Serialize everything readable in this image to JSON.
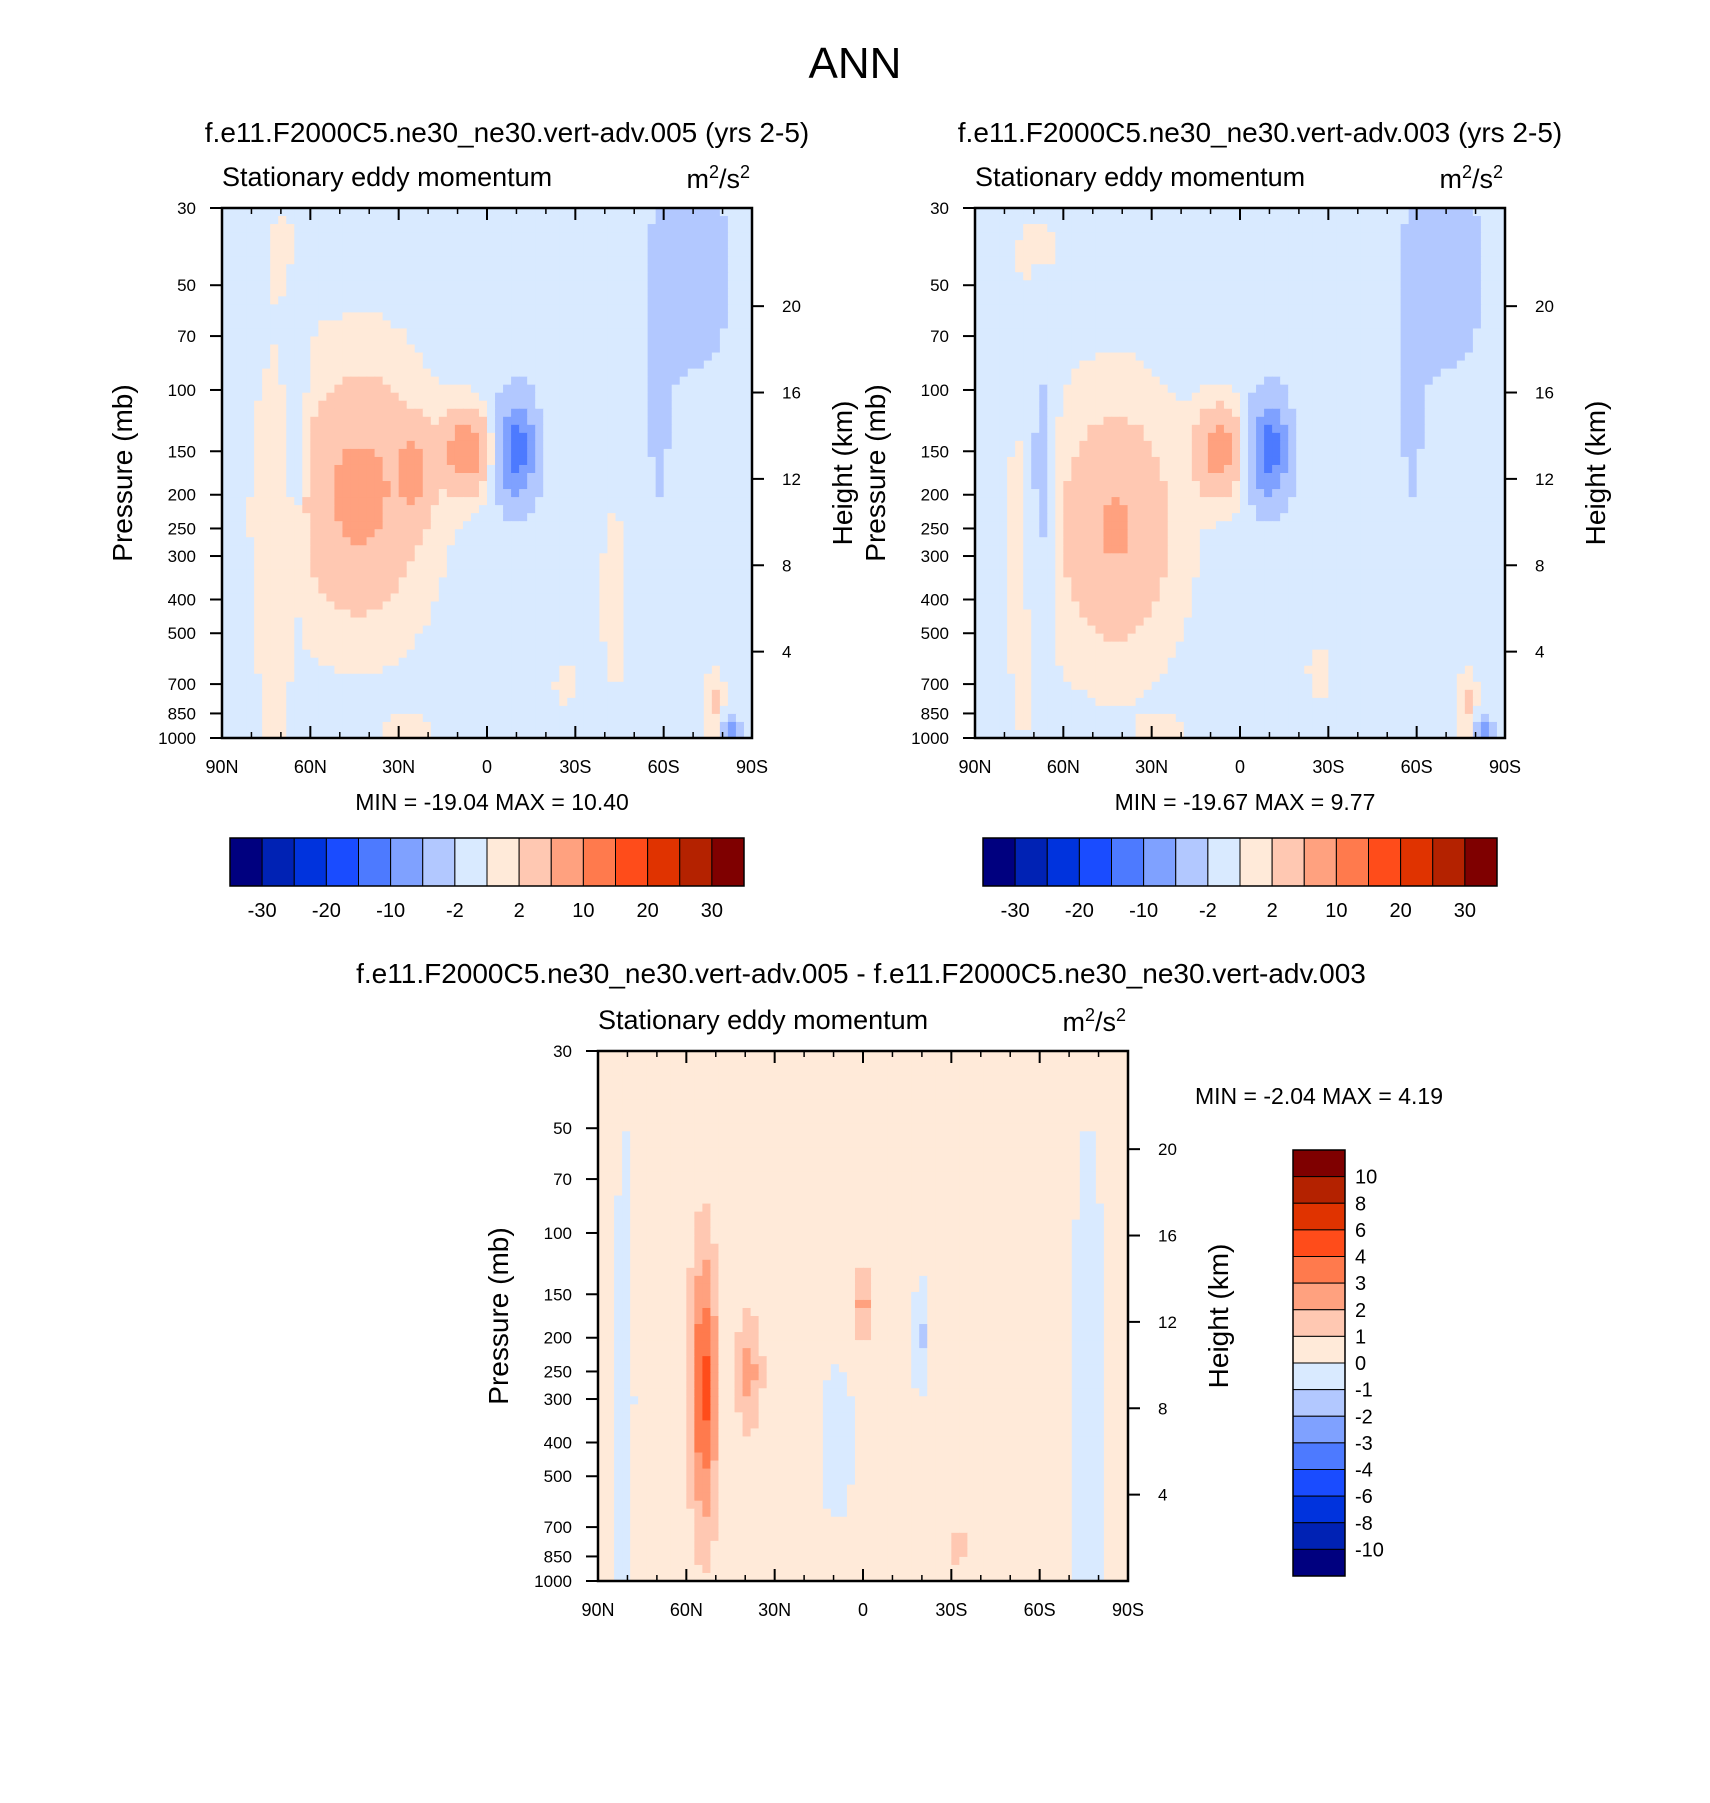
{
  "figure": {
    "title": "ANN"
  },
  "palettes": {
    "main": [
      "#00007f",
      "#0022b4",
      "#0033dd",
      "#1a4cff",
      "#4d7aff",
      "#7fa1ff",
      "#b2c8ff",
      "#d9eaff",
      "#ffead9",
      "#ffc8b2",
      "#ffa17f",
      "#ff7a4d",
      "#ff4c1a",
      "#e03300",
      "#b42200",
      "#7f0000"
    ],
    "diff": [
      "#7f0000",
      "#b42200",
      "#e03300",
      "#ff4c1a",
      "#ff7a4d",
      "#ffa17f",
      "#ffc8b2",
      "#ffead9",
      "#d9eaff",
      "#b2c8ff",
      "#7fa1ff",
      "#4d7aff",
      "#1a4cff",
      "#0033dd",
      "#0022b4",
      "#00007f"
    ]
  },
  "chart_data": [
    {
      "id": "panel-a",
      "type": "heatmap",
      "title": "f.e11.F2000C5.ne30_ne30.vert-adv.005 (yrs 2-5)",
      "subtitle": "Stationary eddy momentum",
      "units": "m2/s2",
      "units_base": "m",
      "units_exp": "2",
      "units_mid": "/s",
      "ylabel": "Pressure (mb)",
      "y2label": "Height (km)",
      "xticks": [
        "90N",
        "60N",
        "30N",
        "0",
        "30S",
        "60S",
        "90S"
      ],
      "yticks": [
        "30",
        "50",
        "70",
        "100",
        "150",
        "200",
        "250",
        "300",
        "400",
        "500",
        "700",
        "850",
        "1000"
      ],
      "y2ticks": [
        "20",
        "16",
        "12",
        "8",
        "4"
      ],
      "stats": "MIN = -19.04  MAX =  10.40",
      "colorbar_labels": [
        "-30",
        "-20",
        "-10",
        "-2",
        "2",
        "10",
        "20",
        "30"
      ],
      "features": [
        {
          "lat": 0.48,
          "p": 200,
          "w": 0.22,
          "h": 0.75,
          "v": 8
        },
        {
          "lat": 0.27,
          "p": 170,
          "w": 0.06,
          "h": 0.28,
          "v": 6
        },
        {
          "lat": 0.08,
          "p": 150,
          "w": 0.09,
          "h": 0.25,
          "v": 10
        },
        {
          "lat": -0.11,
          "p": 150,
          "w": 0.075,
          "h": 0.33,
          "v": -12
        },
        {
          "lat": 0.72,
          "p": 150,
          "w": 0.04,
          "h": 0.9,
          "v": -3
        },
        {
          "lat": -0.78,
          "p": 45,
          "w": 0.12,
          "h": 0.6,
          "v": -5
        },
        {
          "lat": -0.65,
          "p": 100,
          "w": 0.06,
          "h": 1.2,
          "v": -2
        },
        {
          "lat": -0.48,
          "p": 400,
          "w": 0.05,
          "h": 0.6,
          "v": 1.5
        },
        {
          "lat": 0.8,
          "p": 350,
          "w": 0.1,
          "h": 1.6,
          "v": 1
        },
        {
          "lat": 0.75,
          "p": 40,
          "w": 0.1,
          "h": 0.4,
          "v": 0.8
        },
        {
          "lat": -0.86,
          "p": 800,
          "w": 0.03,
          "h": 0.22,
          "v": 3
        },
        {
          "lat": 0.3,
          "p": 950,
          "w": 0.08,
          "h": 0.1,
          "v": 1.5
        },
        {
          "lat": -0.3,
          "p": 700,
          "w": 0.06,
          "h": 0.18,
          "v": 1
        },
        {
          "lat": -0.92,
          "p": 950,
          "w": 0.03,
          "h": 0.08,
          "v": -8
        }
      ],
      "bias": -0.6
    },
    {
      "id": "panel-b",
      "type": "heatmap",
      "title": "f.e11.F2000C5.ne30_ne30.vert-adv.003 (yrs 2-5)",
      "subtitle": "Stationary eddy momentum",
      "units": "m2/s2",
      "units_base": "m",
      "units_exp": "2",
      "units_mid": "/s",
      "ylabel": "Pressure (mb)",
      "y2label": "Height (km)",
      "xticks": [
        "90N",
        "60N",
        "30N",
        "0",
        "30S",
        "60S",
        "90S"
      ],
      "yticks": [
        "30",
        "50",
        "70",
        "100",
        "150",
        "200",
        "250",
        "300",
        "400",
        "500",
        "700",
        "850",
        "1000"
      ],
      "y2ticks": [
        "20",
        "16",
        "12",
        "8",
        "4"
      ],
      "stats": "MIN = -19.67  MAX =   9.77",
      "colorbar_labels": [
        "-30",
        "-20",
        "-10",
        "-2",
        "2",
        "10",
        "20",
        "30"
      ],
      "features": [
        {
          "lat": 0.47,
          "p": 250,
          "w": 0.2,
          "h": 0.75,
          "v": 7
        },
        {
          "lat": 0.08,
          "p": 150,
          "w": 0.09,
          "h": 0.28,
          "v": 9
        },
        {
          "lat": -0.11,
          "p": 150,
          "w": 0.075,
          "h": 0.33,
          "v": -12
        },
        {
          "lat": 0.75,
          "p": 200,
          "w": 0.05,
          "h": 1.0,
          "v": -3.5
        },
        {
          "lat": -0.78,
          "p": 45,
          "w": 0.12,
          "h": 0.6,
          "v": -5
        },
        {
          "lat": -0.65,
          "p": 100,
          "w": 0.06,
          "h": 1.2,
          "v": -2
        },
        {
          "lat": 0.8,
          "p": 350,
          "w": 0.1,
          "h": 1.6,
          "v": 1
        },
        {
          "lat": 0.75,
          "p": 40,
          "w": 0.12,
          "h": 0.4,
          "v": 0.8
        },
        {
          "lat": -0.86,
          "p": 800,
          "w": 0.03,
          "h": 0.22,
          "v": 3
        },
        {
          "lat": 0.3,
          "p": 950,
          "w": 0.08,
          "h": 0.1,
          "v": 1.5
        },
        {
          "lat": -0.3,
          "p": 650,
          "w": 0.06,
          "h": 0.22,
          "v": 1
        },
        {
          "lat": -0.92,
          "p": 950,
          "w": 0.03,
          "h": 0.08,
          "v": -8
        }
      ],
      "bias": -0.6
    },
    {
      "id": "panel-c",
      "type": "heatmap",
      "title": "f.e11.F2000C5.ne30_ne30.vert-adv.005 - f.e11.F2000C5.ne30_ne30.vert-adv.003",
      "subtitle": "Stationary eddy momentum",
      "units": "m2/s2",
      "units_base": "m",
      "units_exp": "2",
      "units_mid": "/s",
      "ylabel": "Pressure (mb)",
      "y2label": "Height (km)",
      "xticks": [
        "90N",
        "60N",
        "30N",
        "0",
        "30S",
        "60S",
        "90S"
      ],
      "yticks": [
        "30",
        "50",
        "70",
        "100",
        "150",
        "200",
        "250",
        "300",
        "400",
        "500",
        "700",
        "850",
        "1000"
      ],
      "y2ticks": [
        "20",
        "16",
        "12",
        "8",
        "4"
      ],
      "stats": "MIN =  -2.04  MAX =   4.19",
      "colorbar_labels": [
        "10",
        "8",
        "6",
        "4",
        "3",
        "2",
        "1",
        "0",
        "-1",
        "-2",
        "-3",
        "-4",
        "-6",
        "-8",
        "-10"
      ],
      "features": [
        {
          "lat": 0.6,
          "p": 280,
          "w": 0.05,
          "h": 0.9,
          "v": 4
        },
        {
          "lat": 0.43,
          "p": 250,
          "w": 0.05,
          "h": 0.4,
          "v": 2
        },
        {
          "lat": 0.0,
          "p": 160,
          "w": 0.04,
          "h": 0.25,
          "v": 2
        },
        {
          "lat": -0.22,
          "p": 200,
          "w": 0.03,
          "h": 0.35,
          "v": -1.5
        },
        {
          "lat": -0.5,
          "p": 300,
          "w": 0.15,
          "h": 2.0,
          "v": 0.5
        },
        {
          "lat": 0.9,
          "p": 300,
          "w": 0.04,
          "h": 2.0,
          "v": -0.8
        },
        {
          "lat": -0.85,
          "p": 300,
          "w": 0.07,
          "h": 2.0,
          "v": -0.8
        },
        {
          "lat": 0.1,
          "p": 400,
          "w": 0.09,
          "h": 0.7,
          "v": -0.6
        },
        {
          "lat": -0.35,
          "p": 800,
          "w": 0.05,
          "h": 0.15,
          "v": 0.8
        }
      ],
      "bias": 0.35
    }
  ]
}
